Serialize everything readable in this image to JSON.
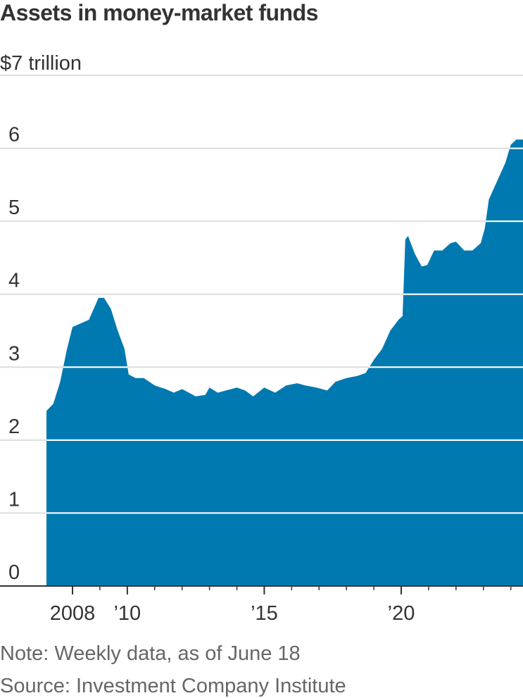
{
  "title": "Assets in money-market funds",
  "note": "Note: Weekly data, as of June 18",
  "source": "Source: Investment Company Institute",
  "colors": {
    "area": "#0079b1",
    "grid": "#dddddd",
    "axis": "#333333",
    "text": "#333333",
    "muted": "#666666"
  },
  "chart_data": {
    "type": "area",
    "title": "Assets in money-market funds",
    "ylabel": "",
    "xlabel": "",
    "unit_label": "$7 trillion",
    "ylim": [
      0,
      7
    ],
    "xlim": [
      2007.0,
      2024.5
    ],
    "grid": true,
    "y_ticks": [
      {
        "value": 0,
        "label": "0"
      },
      {
        "value": 1,
        "label": "1"
      },
      {
        "value": 2,
        "label": "2"
      },
      {
        "value": 3,
        "label": "3"
      },
      {
        "value": 4,
        "label": "4"
      },
      {
        "value": 5,
        "label": "5"
      },
      {
        "value": 6,
        "label": "6"
      }
    ],
    "x_ticks": [
      {
        "value": 2008,
        "label": "2008"
      },
      {
        "value": 2010,
        "label": "’10"
      },
      {
        "value": 2015,
        "label": "’15"
      },
      {
        "value": 2020,
        "label": "’20"
      }
    ],
    "x_minor_ticks": [
      2009,
      2011,
      2012,
      2013,
      2014,
      2016,
      2017,
      2018,
      2019,
      2021,
      2022,
      2023,
      2024
    ],
    "series": [
      {
        "values": [
          [
            2007.05,
            2.4
          ],
          [
            2007.3,
            2.5
          ],
          [
            2007.55,
            2.8
          ],
          [
            2007.8,
            3.25
          ],
          [
            2008.0,
            3.55
          ],
          [
            2008.3,
            3.6
          ],
          [
            2008.6,
            3.65
          ],
          [
            2008.95,
            3.95
          ],
          [
            2009.15,
            3.95
          ],
          [
            2009.4,
            3.8
          ],
          [
            2009.65,
            3.5
          ],
          [
            2009.9,
            3.25
          ],
          [
            2010.05,
            2.9
          ],
          [
            2010.3,
            2.85
          ],
          [
            2010.6,
            2.85
          ],
          [
            2011.0,
            2.75
          ],
          [
            2011.4,
            2.7
          ],
          [
            2011.7,
            2.65
          ],
          [
            2012.0,
            2.7
          ],
          [
            2012.5,
            2.6
          ],
          [
            2012.85,
            2.62
          ],
          [
            2013.0,
            2.72
          ],
          [
            2013.3,
            2.65
          ],
          [
            2013.6,
            2.68
          ],
          [
            2014.0,
            2.72
          ],
          [
            2014.3,
            2.68
          ],
          [
            2014.6,
            2.6
          ],
          [
            2015.0,
            2.72
          ],
          [
            2015.4,
            2.65
          ],
          [
            2015.8,
            2.75
          ],
          [
            2016.2,
            2.78
          ],
          [
            2016.5,
            2.75
          ],
          [
            2016.9,
            2.72
          ],
          [
            2017.3,
            2.68
          ],
          [
            2017.6,
            2.8
          ],
          [
            2018.0,
            2.85
          ],
          [
            2018.4,
            2.88
          ],
          [
            2018.7,
            2.92
          ],
          [
            2019.0,
            3.1
          ],
          [
            2019.3,
            3.25
          ],
          [
            2019.6,
            3.5
          ],
          [
            2019.9,
            3.65
          ],
          [
            2020.05,
            3.7
          ],
          [
            2020.15,
            4.75
          ],
          [
            2020.25,
            4.8
          ],
          [
            2020.5,
            4.55
          ],
          [
            2020.75,
            4.38
          ],
          [
            2020.95,
            4.4
          ],
          [
            2021.2,
            4.6
          ],
          [
            2021.5,
            4.6
          ],
          [
            2021.8,
            4.7
          ],
          [
            2022.0,
            4.72
          ],
          [
            2022.3,
            4.6
          ],
          [
            2022.6,
            4.6
          ],
          [
            2022.9,
            4.7
          ],
          [
            2023.05,
            4.9
          ],
          [
            2023.2,
            5.3
          ],
          [
            2023.5,
            5.55
          ],
          [
            2023.8,
            5.8
          ],
          [
            2024.0,
            6.05
          ],
          [
            2024.2,
            6.12
          ],
          [
            2024.5,
            6.12
          ]
        ]
      }
    ]
  }
}
